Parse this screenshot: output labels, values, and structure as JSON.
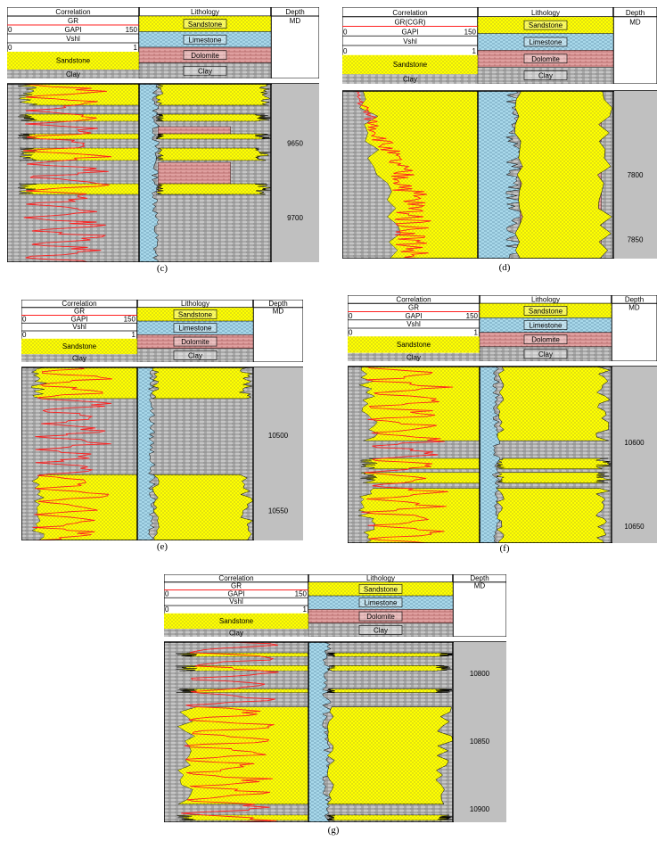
{
  "colors": {
    "sandstone": "#ffff00",
    "limestone": "#a8d8ea",
    "dolomite": "#e0a0a0",
    "clay": "#a8a8a8",
    "gr_curve": "#ff2020",
    "depth_bg": "#c0c0c0"
  },
  "icons": {
    "pattern": "lithology-pattern-swatches"
  },
  "panels": [
    {
      "id": "c",
      "caption": "(c)",
      "header": {
        "correlation": "Correlation",
        "lithology": "Lithology",
        "depth": "Depth",
        "depth_unit": "MD",
        "curve1_name": "GR",
        "curve1_unit": "GAPI",
        "curve1_min": "0",
        "curve1_max": "150",
        "curve2_name": "Vshl",
        "curve2_min": "0",
        "curve2_max": "1",
        "sandstone": "Sandstone",
        "clay": "Clay",
        "leg_sandstone": "Sandstone",
        "leg_limestone": "Limestone",
        "leg_dolomite": "Dolomite",
        "leg_clay": "Clay"
      },
      "depths": [
        "9650",
        "9700"
      ],
      "depth_range": [
        9610,
        9730
      ]
    },
    {
      "id": "d",
      "caption": "(d)",
      "header": {
        "correlation": "Correlation",
        "lithology": "Lithology",
        "depth": "Depth",
        "depth_unit": "MD",
        "curve1_name": "GR(CGR)",
        "curve1_unit": "GAPI",
        "curve1_min": "0",
        "curve1_max": "150",
        "curve2_name": "Vshl",
        "curve2_min": "0",
        "curve2_max": "1",
        "sandstone": "Sandstone",
        "clay": "Clay",
        "leg_sandstone": "Sandstone",
        "leg_limestone": "Limestone",
        "leg_dolomite": "Dolomite",
        "leg_clay": "Clay"
      },
      "depths": [
        "7800",
        "7850"
      ],
      "depth_range": [
        7735,
        7865
      ]
    },
    {
      "id": "e",
      "caption": "(e)",
      "header": {
        "correlation": "Correlation",
        "lithology": "Lithology",
        "depth": "Depth",
        "depth_unit": "MD",
        "curve1_name": "GR",
        "curve1_unit": "GAPI",
        "curve1_min": "0",
        "curve1_max": "150",
        "curve2_name": "Vshl",
        "curve2_min": "0",
        "curve2_max": "1",
        "sandstone": "Sandstone",
        "clay": "Clay",
        "leg_sandstone": "Sandstone",
        "leg_limestone": "Limestone",
        "leg_dolomite": "Dolomite",
        "leg_clay": "Clay"
      },
      "depths": [
        "10500",
        "10550"
      ],
      "depth_range": [
        10455,
        10570
      ]
    },
    {
      "id": "f",
      "caption": "(f)",
      "header": {
        "correlation": "Correlation",
        "lithology": "Lithology",
        "depth": "Depth",
        "depth_unit": "MD",
        "curve1_name": "GR",
        "curve1_unit": "GAPI",
        "curve1_min": "0",
        "curve1_max": "150",
        "curve2_name": "Vshl",
        "curve2_min": "0",
        "curve2_max": "1",
        "sandstone": "Sandstone",
        "clay": "Clay",
        "leg_sandstone": "Sandstone",
        "leg_limestone": "Limestone",
        "leg_dolomite": "Dolomite",
        "leg_clay": "Clay"
      },
      "depths": [
        "10600",
        "10650"
      ],
      "depth_range": [
        10555,
        10660
      ]
    },
    {
      "id": "g",
      "caption": "(g)",
      "header": {
        "correlation": "Correlation",
        "lithology": "Lithology",
        "depth": "Depth",
        "depth_unit": "MD",
        "curve1_name": "GR",
        "curve1_unit": "GAPI",
        "curve1_min": "0",
        "curve1_max": "150",
        "curve2_name": "Vshl",
        "curve2_min": "0",
        "curve2_max": "1",
        "sandstone": "Sandstone",
        "clay": "Clay",
        "leg_sandstone": "Sandstone",
        "leg_limestone": "Limestone",
        "leg_dolomite": "Dolomite",
        "leg_clay": "Clay"
      },
      "depths": [
        "10800",
        "10850",
        "10900"
      ],
      "depth_range": [
        10777,
        10910
      ]
    }
  ]
}
